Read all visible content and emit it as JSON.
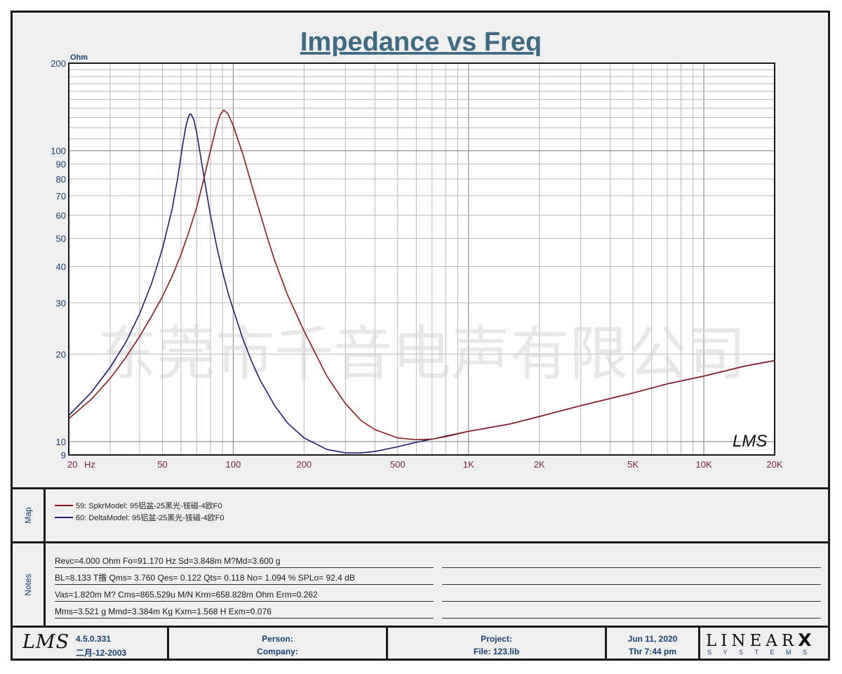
{
  "chart_data": {
    "type": "line",
    "title": "Impedance vs Freq",
    "ylabel": "Ohm",
    "xlabel": "",
    "x_scale": "log",
    "y_scale": "log",
    "xlim": [
      20,
      20000
    ],
    "ylim": [
      9,
      200
    ],
    "grid": true,
    "x_ticks": [
      {
        "v": 20,
        "label": "20"
      },
      {
        "v": 50,
        "label": "50"
      },
      {
        "v": 100,
        "label": "100"
      },
      {
        "v": 200,
        "label": "200"
      },
      {
        "v": 500,
        "label": "500"
      },
      {
        "v": 1000,
        "label": "1K"
      },
      {
        "v": 2000,
        "label": "2K"
      },
      {
        "v": 5000,
        "label": "5K"
      },
      {
        "v": 10000,
        "label": "10K"
      },
      {
        "v": 20000,
        "label": "20K"
      }
    ],
    "x_unit_label": "Hz",
    "y_ticks": [
      {
        "v": 9,
        "label": "9"
      },
      {
        "v": 10,
        "label": "10"
      },
      {
        "v": 20,
        "label": "20"
      },
      {
        "v": 30,
        "label": "30"
      },
      {
        "v": 40,
        "label": "40"
      },
      {
        "v": 50,
        "label": "50"
      },
      {
        "v": 60,
        "label": "60"
      },
      {
        "v": 70,
        "label": "70"
      },
      {
        "v": 80,
        "label": "80"
      },
      {
        "v": 90,
        "label": "90"
      },
      {
        "v": 100,
        "label": "100"
      },
      {
        "v": 200,
        "label": "200"
      }
    ],
    "series": [
      {
        "name": "59: SpkrModel: 95铝盆-25黑光-铵磁-4欧F0",
        "color": "#8b1a1a",
        "points": [
          [
            20,
            12.0
          ],
          [
            25,
            14.0
          ],
          [
            30,
            16.5
          ],
          [
            35,
            19.5
          ],
          [
            40,
            23.0
          ],
          [
            45,
            27.0
          ],
          [
            50,
            31.5
          ],
          [
            55,
            37.0
          ],
          [
            60,
            44.0
          ],
          [
            65,
            53.0
          ],
          [
            70,
            64.0
          ],
          [
            75,
            80.0
          ],
          [
            80,
            100.0
          ],
          [
            85,
            122.0
          ],
          [
            88,
            133.0
          ],
          [
            91.17,
            138.0
          ],
          [
            95,
            134.0
          ],
          [
            100,
            122.0
          ],
          [
            110,
            97.0
          ],
          [
            120,
            76.0
          ],
          [
            130,
            61.0
          ],
          [
            140,
            50.0
          ],
          [
            150,
            42.0
          ],
          [
            170,
            32.0
          ],
          [
            200,
            24.0
          ],
          [
            250,
            16.8
          ],
          [
            300,
            13.5
          ],
          [
            350,
            11.8
          ],
          [
            400,
            11.0
          ],
          [
            500,
            10.3
          ],
          [
            600,
            10.15
          ],
          [
            700,
            10.2
          ],
          [
            800,
            10.4
          ],
          [
            1000,
            10.85
          ],
          [
            1500,
            11.5
          ],
          [
            2000,
            12.2
          ],
          [
            3000,
            13.3
          ],
          [
            5000,
            14.7
          ],
          [
            7000,
            15.8
          ],
          [
            10000,
            16.8
          ],
          [
            15000,
            18.2
          ],
          [
            20000,
            19.0
          ]
        ]
      },
      {
        "name": "60: DeltaModel: 95铝盆-25黑光-铵磁-4欧F0",
        "color": "#1c1f6e",
        "points": [
          [
            20,
            12.3
          ],
          [
            25,
            14.8
          ],
          [
            30,
            18.0
          ],
          [
            35,
            22.0
          ],
          [
            40,
            27.5
          ],
          [
            45,
            35.0
          ],
          [
            50,
            46.0
          ],
          [
            55,
            63.0
          ],
          [
            58,
            80.0
          ],
          [
            61,
            105.0
          ],
          [
            63,
            122.0
          ],
          [
            65,
            133.0
          ],
          [
            66,
            134.0
          ],
          [
            68,
            128.0
          ],
          [
            70,
            115.0
          ],
          [
            75,
            82.0
          ],
          [
            80,
            60.0
          ],
          [
            85,
            47.0
          ],
          [
            90,
            38.5
          ],
          [
            95,
            32.5
          ],
          [
            100,
            28.5
          ],
          [
            110,
            22.5
          ],
          [
            120,
            18.8
          ],
          [
            130,
            16.3
          ],
          [
            150,
            13.3
          ],
          [
            170,
            11.6
          ],
          [
            200,
            10.3
          ],
          [
            250,
            9.4
          ],
          [
            300,
            9.15
          ],
          [
            350,
            9.15
          ],
          [
            400,
            9.25
          ],
          [
            500,
            9.6
          ],
          [
            600,
            9.95
          ],
          [
            700,
            10.2
          ],
          [
            800,
            10.45
          ],
          [
            1000,
            10.85
          ],
          [
            1500,
            11.5
          ],
          [
            2000,
            12.2
          ],
          [
            3000,
            13.3
          ],
          [
            5000,
            14.7
          ],
          [
            7000,
            15.8
          ],
          [
            10000,
            16.8
          ],
          [
            15000,
            18.2
          ],
          [
            20000,
            19.0
          ]
        ]
      }
    ],
    "watermark": "东莞市千音电声有限公司",
    "brand_mark": "LMS"
  },
  "map": {
    "label": "Map",
    "entries": [
      {
        "text": "59: SpkrModel: 95铝盆-25黑光-铵磁-4欧F0",
        "color": "#8b1a1a"
      },
      {
        "text": "60: DeltaModel: 95铝盆-25黑光-铵磁-4欧F0",
        "color": "#1c1f6e"
      }
    ]
  },
  "notes": {
    "label": "Notes",
    "lines": [
      "Revc=4.000 Ohm  Fo=91.170 Hz  Sd=3.848m M?Md=3.600 g",
      "BL=8.133 T揝  Qms= 3.760  Qes= 0.122  Qts= 0.118  No= 1.094 %  SPLo= 92.4 dB",
      "Vas=1.820m M? Cms=865.529u M/N  Krm=658.828m Ohm  Erm=0.262",
      "Mms=3.521 g  Mmd=3.384m Kg  Kxm=1.568 H  Exm=0.076"
    ]
  },
  "footer": {
    "logo": "LMS",
    "version": "4.5.0.331",
    "version_date": "二月-12-2003",
    "person_label": "Person:",
    "company_label": "Company:",
    "project_label": "Project:",
    "file_label": "File: 123.lib",
    "date": "Jun 11, 2020",
    "time": "Thr  7:44 pm",
    "brand_top": "LINEAR",
    "brand_x": "X",
    "brand_bottom": "SYSTEMS"
  }
}
